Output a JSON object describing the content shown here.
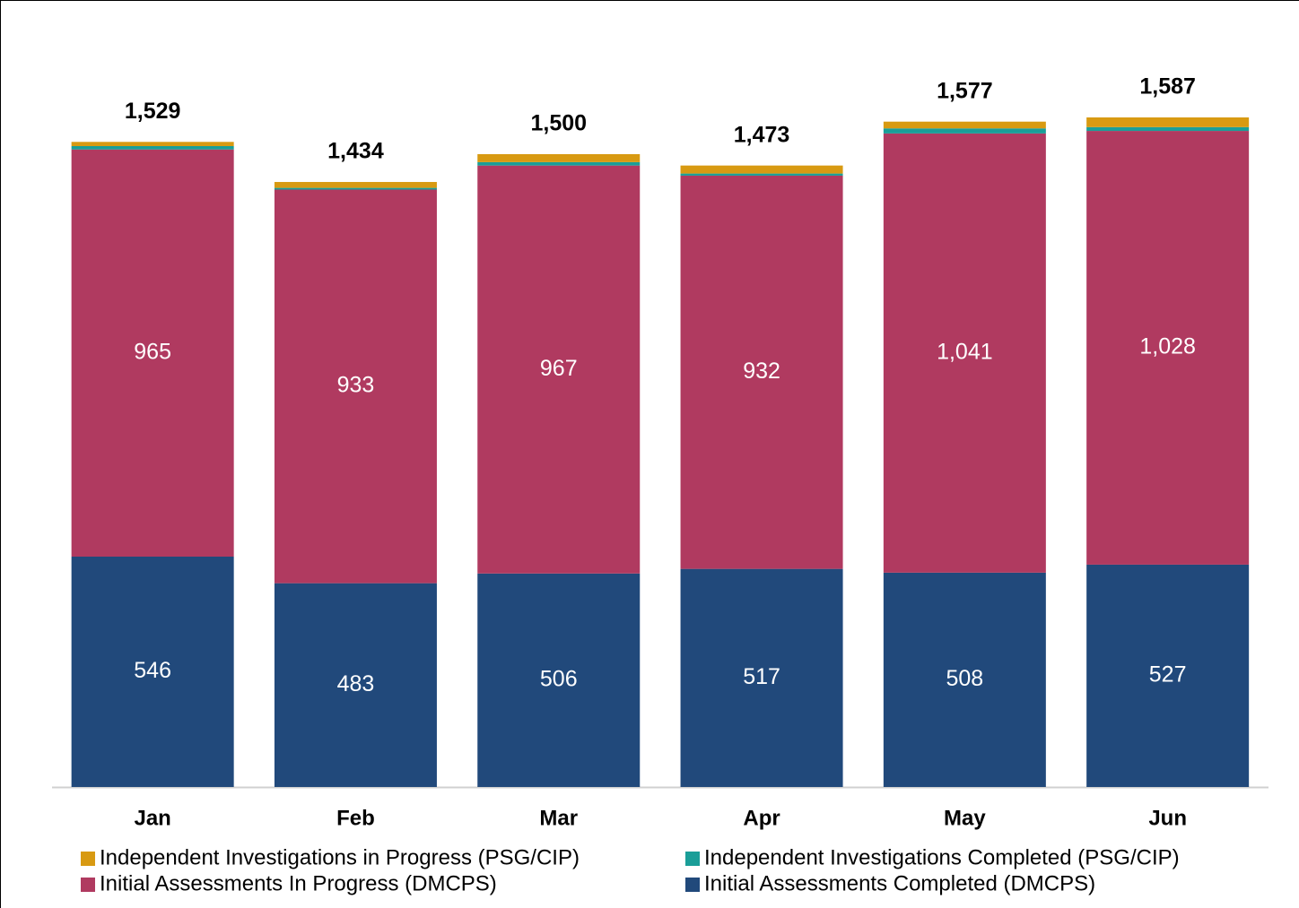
{
  "chart_data": {
    "type": "stacked_bar",
    "categories": [
      "Jan",
      "Feb",
      "Mar",
      "Apr",
      "May",
      "Jun"
    ],
    "series": [
      {
        "name": "Independent Investigations in Progress (PSG/CIP)",
        "color": "#d89a12",
        "values": [
          10,
          14,
          19,
          19,
          16,
          23
        ]
      },
      {
        "name": "Independent Investigations Completed (PSG/CIP)",
        "color": "#1a9e98",
        "values": [
          8,
          4,
          8,
          5,
          12,
          9
        ]
      },
      {
        "name": "Initial Assessments In Progress (DMCPS)",
        "color": "#b03a60",
        "values": [
          965,
          933,
          967,
          932,
          1041,
          1028
        ],
        "value_labels": [
          "965",
          "933",
          "967",
          "932",
          "1,041",
          "1,028"
        ]
      },
      {
        "name": "Initial Assessments Completed (DMCPS)",
        "color": "#21497b",
        "values": [
          546,
          483,
          506,
          517,
          508,
          527
        ]
      }
    ],
    "totals": [
      1529,
      1434,
      1500,
      1473,
      1577,
      1587
    ],
    "total_labels": [
      "1,529",
      "1,434",
      "1,500",
      "1,473",
      "1,577",
      "1,587"
    ]
  }
}
